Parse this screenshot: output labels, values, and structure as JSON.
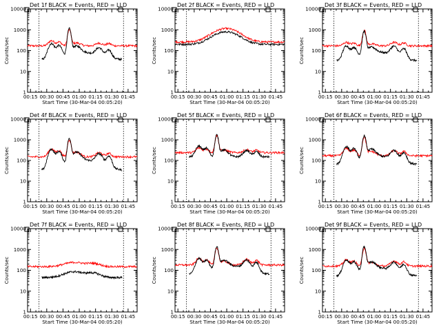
{
  "figure": {
    "xlabel": "Start Time (30-Mar-04 00:05:20)",
    "ylabel": "Counts/sec",
    "x_ticks": [
      "00:15",
      "00:30",
      "00:45",
      "01:00",
      "01:15",
      "01:30",
      "01:45"
    ],
    "y_ticks": [
      "1",
      "10",
      "100",
      "1000",
      "10000"
    ],
    "colors": {
      "events": "#000000",
      "lld": "#ff0000",
      "axes": "#000000"
    }
  },
  "chart_data": [
    {
      "type": "line",
      "scale_y": "log",
      "title": "Det 1f BLACK = Events, RED = LLD",
      "xlim": [
        7,
        108
      ],
      "ylim": [
        1,
        10000
      ],
      "x_units": "minutes after 00:05:20",
      "event_span": [
        17.5,
        95.5
      ],
      "series": [
        {
          "name": "Events",
          "shape": "double",
          "range": [
            20,
            94
          ],
          "base": 35,
          "s1": 210,
          "s2": 110,
          "peak": 1100
        },
        {
          "name": "LLD",
          "shape": "double",
          "range": [
            7,
            108
          ],
          "base": 170,
          "s1": 300,
          "s2": 230,
          "peak": 1000
        }
      ]
    },
    {
      "type": "line",
      "scale_y": "log",
      "title": "Det 2f BLACK = Events, RED = LLD",
      "xlim": [
        7,
        108
      ],
      "ylim": [
        1,
        10000
      ],
      "x_units": "minutes after 00:05:20",
      "event_span": [
        17.5,
        95.5
      ],
      "series": [
        {
          "name": "Events",
          "shape": "smooth",
          "range": [
            7,
            108
          ],
          "base": 200,
          "peak": 800
        },
        {
          "name": "LLD",
          "shape": "smooth",
          "range": [
            7,
            108
          ],
          "base": 260,
          "peak": 1150
        }
      ]
    },
    {
      "type": "line",
      "scale_y": "log",
      "title": "Det 3f BLACK = Events, RED = LLD",
      "xlim": [
        7,
        108
      ],
      "ylim": [
        1,
        10000
      ],
      "x_units": "minutes after 00:05:20",
      "event_span": [
        17.5,
        95.5
      ],
      "series": [
        {
          "name": "Events",
          "shape": "double",
          "range": [
            20,
            94
          ],
          "base": 30,
          "s1": 160,
          "s2": 130,
          "peak": 800
        },
        {
          "name": "LLD",
          "shape": "double",
          "range": [
            7,
            108
          ],
          "base": 170,
          "s1": 250,
          "s2": 250,
          "peak": 950
        }
      ]
    },
    {
      "type": "line",
      "scale_y": "log",
      "title": "Det 4f BLACK = Events, RED = LLD",
      "xlim": [
        7,
        108
      ],
      "ylim": [
        1,
        10000
      ],
      "x_units": "minutes after 00:05:20",
      "event_span": [
        17.5,
        95.5
      ],
      "series": [
        {
          "name": "Events",
          "shape": "double",
          "range": [
            20,
            94
          ],
          "base": 30,
          "s1": 330,
          "s2": 170,
          "peak": 1100
        },
        {
          "name": "LLD",
          "shape": "double",
          "range": [
            7,
            108
          ],
          "base": 150,
          "s1": 360,
          "s2": 240,
          "peak": 1000
        }
      ]
    },
    {
      "type": "line",
      "scale_y": "log",
      "title": "Det 5f BLACK = Events, RED = LLD",
      "xlim": [
        7,
        108
      ],
      "ylim": [
        1,
        10000
      ],
      "x_units": "minutes after 00:05:20",
      "event_span": [
        17.5,
        95.5
      ],
      "series": [
        {
          "name": "Events",
          "shape": "double",
          "range": [
            20,
            94
          ],
          "base": 150,
          "s1": 500,
          "s2": 300,
          "peak": 1700
        },
        {
          "name": "LLD",
          "shape": "double",
          "range": [
            7,
            108
          ],
          "base": 240,
          "s1": 400,
          "s2": 330,
          "peak": 1600
        }
      ]
    },
    {
      "type": "line",
      "scale_y": "log",
      "title": "Det 6f BLACK = Events, RED = LLD",
      "xlim": [
        7,
        108
      ],
      "ylim": [
        1,
        10000
      ],
      "x_units": "minutes after 00:05:20",
      "event_span": [
        17.5,
        95.5
      ],
      "series": [
        {
          "name": "Events",
          "shape": "double",
          "range": [
            20,
            94
          ],
          "base": 60,
          "s1": 450,
          "s2": 250,
          "peak": 1500
        },
        {
          "name": "LLD",
          "shape": "double",
          "range": [
            7,
            108
          ],
          "base": 170,
          "s1": 380,
          "s2": 300,
          "peak": 1400
        }
      ]
    },
    {
      "type": "line",
      "scale_y": "log",
      "title": "Det 7f BLACK = Events, RED = LLD",
      "xlim": [
        7,
        108
      ],
      "ylim": [
        1,
        10000
      ],
      "x_units": "minutes after 00:05:20",
      "event_span": [
        17.5,
        95.5
      ],
      "series": [
        {
          "name": "Events",
          "shape": "plateau",
          "range": [
            20,
            94
          ],
          "base": 45,
          "peak": 90
        },
        {
          "name": "LLD",
          "shape": "plateau",
          "range": [
            7,
            108
          ],
          "base": 150,
          "peak": 250
        }
      ]
    },
    {
      "type": "line",
      "scale_y": "log",
      "title": "Det 8f BLACK = Events, RED = LLD",
      "xlim": [
        7,
        108
      ],
      "ylim": [
        1,
        10000
      ],
      "x_units": "minutes after 00:05:20",
      "event_span": [
        17.5,
        95.5
      ],
      "series": [
        {
          "name": "Events",
          "shape": "double",
          "range": [
            20,
            94
          ],
          "base": 60,
          "s1": 350,
          "s2": 250,
          "peak": 1300
        },
        {
          "name": "LLD",
          "shape": "double",
          "range": [
            7,
            108
          ],
          "base": 180,
          "s1": 370,
          "s2": 330,
          "peak": 1200
        }
      ]
    },
    {
      "type": "line",
      "scale_y": "log",
      "title": "Det 9f BLACK = Events, RED = LLD",
      "xlim": [
        7,
        108
      ],
      "ylim": [
        1,
        10000
      ],
      "x_units": "minutes after 00:05:20",
      "event_span": [
        17.5,
        95.5
      ],
      "series": [
        {
          "name": "Events",
          "shape": "double",
          "range": [
            20,
            94
          ],
          "base": 50,
          "s1": 300,
          "s2": 200,
          "peak": 1300
        },
        {
          "name": "LLD",
          "shape": "double",
          "range": [
            7,
            108
          ],
          "base": 160,
          "s1": 320,
          "s2": 280,
          "peak": 1200
        }
      ]
    }
  ]
}
